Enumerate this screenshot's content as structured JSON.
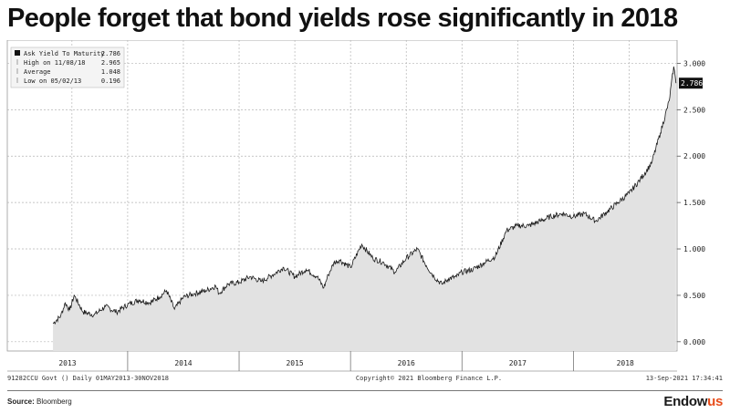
{
  "page": {
    "title": "People forget that bond yields rose significantly in 2018",
    "source_label": "Source",
    "source_value": "Bloomberg",
    "brand_main": "Endow",
    "brand_accent": "us"
  },
  "colors": {
    "line": "#1a1a1a",
    "area": "#e2e2e2",
    "grid": "#b5b5b5",
    "label_bg": "#111111",
    "label_text": "#ffffff"
  },
  "chart_data": {
    "type": "area",
    "title": "",
    "xlabel": "",
    "ylabel": "",
    "x_range": [
      2012.92,
      2018.93
    ],
    "ylim": [
      -0.1,
      3.25
    ],
    "y_ticks": [
      0.0,
      0.5,
      1.0,
      1.5,
      2.0,
      2.5,
      3.0
    ],
    "y_tick_labels": [
      "0.000",
      "0.500",
      "1.000",
      "1.500",
      "2.000",
      "2.500",
      "3.000"
    ],
    "year_labels": [
      "2013",
      "2014",
      "2015",
      "2016",
      "2017",
      "2018"
    ],
    "year_boundaries": [
      2014.0,
      2015.0,
      2016.0,
      2017.0,
      2018.0
    ],
    "grid": true,
    "series": [
      {
        "name": "Ask Yield To Maturity",
        "x": [
          2013.33,
          2013.4,
          2013.44,
          2013.48,
          2013.52,
          2013.6,
          2013.7,
          2013.8,
          2013.9,
          2014.0,
          2014.1,
          2014.2,
          2014.28,
          2014.35,
          2014.42,
          2014.5,
          2014.6,
          2014.7,
          2014.79,
          2014.82,
          2014.9,
          2015.0,
          2015.1,
          2015.2,
          2015.3,
          2015.4,
          2015.5,
          2015.6,
          2015.7,
          2015.76,
          2015.8,
          2015.85,
          2015.9,
          2016.0,
          2016.1,
          2016.2,
          2016.3,
          2016.4,
          2016.5,
          2016.6,
          2016.68,
          2016.75,
          2016.82,
          2016.88,
          2016.95,
          2017.0,
          2017.1,
          2017.2,
          2017.3,
          2017.4,
          2017.5,
          2017.6,
          2017.7,
          2017.8,
          2017.9,
          2018.0,
          2018.1,
          2018.2,
          2018.3,
          2018.4,
          2018.5,
          2018.6,
          2018.7,
          2018.78,
          2018.86,
          2018.9,
          2018.92
        ],
        "y": [
          0.196,
          0.28,
          0.42,
          0.34,
          0.5,
          0.32,
          0.29,
          0.38,
          0.32,
          0.4,
          0.45,
          0.42,
          0.48,
          0.55,
          0.35,
          0.48,
          0.52,
          0.55,
          0.6,
          0.52,
          0.62,
          0.64,
          0.7,
          0.65,
          0.72,
          0.8,
          0.7,
          0.78,
          0.7,
          0.58,
          0.72,
          0.85,
          0.88,
          0.8,
          1.05,
          0.9,
          0.85,
          0.75,
          0.9,
          1.0,
          0.82,
          0.7,
          0.62,
          0.68,
          0.7,
          0.75,
          0.78,
          0.85,
          0.92,
          1.2,
          1.25,
          1.25,
          1.3,
          1.35,
          1.38,
          1.35,
          1.38,
          1.3,
          1.4,
          1.5,
          1.6,
          1.75,
          1.92,
          2.25,
          2.6,
          2.965,
          2.786
        ]
      }
    ],
    "current_value_label": "2.786",
    "legend": {
      "placement": "top-left",
      "entries": [
        {
          "label": "Ask Yield To Maturity",
          "value": "2.786"
        },
        {
          "label": "High on 11/08/18",
          "value": "2.965"
        },
        {
          "label": "Average",
          "value": "1.048"
        },
        {
          "label": "Low on 05/02/13",
          "value": "0.196"
        }
      ]
    },
    "footer": {
      "security": "91282CCU Govt ()",
      "range": "Daily 01MAY2013-30NOV2018",
      "copyright": "Copyright© 2021 Bloomberg Finance L.P.",
      "timestamp": "13-Sep-2021 17:34:41"
    }
  }
}
